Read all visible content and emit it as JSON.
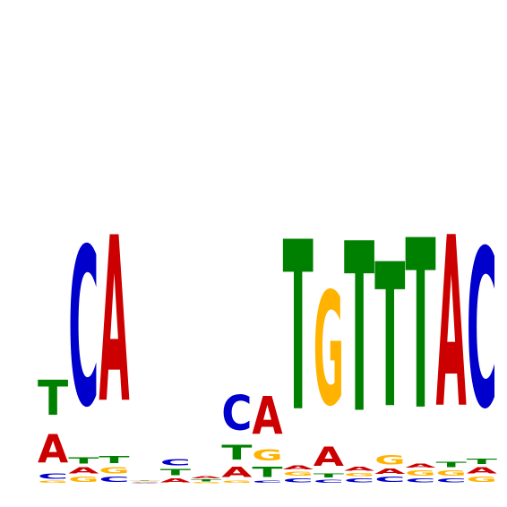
{
  "colors": {
    "A": "#cc0000",
    "C": "#0000cc",
    "G": "#ffb300",
    "T": "#008000"
  },
  "chart_data": {
    "type": "sequence-logo",
    "alphabet": [
      "A",
      "C",
      "G",
      "T"
    ],
    "ylim": [
      0,
      2
    ],
    "columns": [
      [
        [
          "G",
          0.02
        ],
        [
          "C",
          0.05
        ],
        [
          "A",
          0.28
        ],
        [
          "T",
          0.34
        ]
      ],
      [
        [
          "G",
          0.05
        ],
        [
          "A",
          0.06
        ],
        [
          "T",
          0.06
        ],
        [
          "C",
          1.55
        ]
      ],
      [
        [
          "C",
          0.05
        ],
        [
          "G",
          0.06
        ],
        [
          "T",
          0.07
        ],
        [
          "A",
          1.62
        ]
      ],
      [
        [
          "A",
          0.005
        ],
        [
          "C",
          0.005
        ],
        [
          "G",
          0.005
        ],
        [
          "T",
          0.005
        ]
      ],
      [
        [
          "A",
          0.04
        ],
        [
          "T",
          0.06
        ],
        [
          "C",
          0.06
        ]
      ],
      [
        [
          "G",
          0.01
        ],
        [
          "T",
          0.02
        ],
        [
          "A",
          0.02
        ]
      ],
      [
        [
          "G",
          0.02
        ],
        [
          "A",
          0.1
        ],
        [
          "T",
          0.14
        ],
        [
          "C",
          0.34
        ]
      ],
      [
        [
          "C",
          0.02
        ],
        [
          "T",
          0.1
        ],
        [
          "G",
          0.11
        ],
        [
          "A",
          0.37
        ]
      ],
      [
        [
          "C",
          0.04
        ],
        [
          "G",
          0.04
        ],
        [
          "A",
          0.04
        ],
        [
          "T",
          1.66
        ]
      ],
      [
        [
          "C",
          0.03
        ],
        [
          "T",
          0.04
        ],
        [
          "A",
          0.19
        ],
        [
          "G",
          1.11
        ]
      ],
      [
        [
          "C",
          0.04
        ],
        [
          "G",
          0.03
        ],
        [
          "A",
          0.04
        ],
        [
          "T",
          1.66
        ]
      ],
      [
        [
          "C",
          0.05
        ],
        [
          "A",
          0.05
        ],
        [
          "G",
          0.09
        ],
        [
          "T",
          1.41
        ]
      ],
      [
        [
          "C",
          0.04
        ],
        [
          "G",
          0.05
        ],
        [
          "A",
          0.04
        ],
        [
          "T",
          1.66
        ]
      ],
      [
        [
          "C",
          0.04
        ],
        [
          "G",
          0.05
        ],
        [
          "T",
          0.05
        ],
        [
          "A",
          1.67
        ]
      ],
      [
        [
          "G",
          0.05
        ],
        [
          "A",
          0.06
        ],
        [
          "T",
          0.05
        ],
        [
          "C",
          1.55
        ]
      ]
    ]
  }
}
